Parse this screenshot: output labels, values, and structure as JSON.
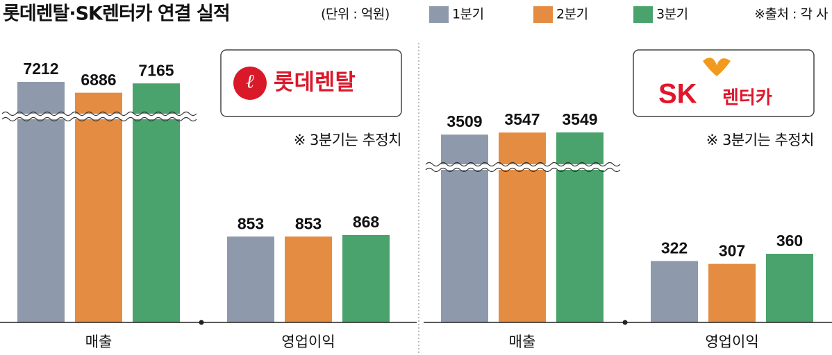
{
  "header": {
    "title": "롯데렌탈·SK렌터카 연결 실적",
    "unit": "(단위 : 억원)",
    "source": "※출처 : 각 사"
  },
  "chart_data": [
    {
      "type": "bar",
      "logo_text": "롯데렌탈",
      "note": "※ 3분기는 추정치",
      "axis_break": true,
      "categories": [
        "매출",
        "영업이익"
      ],
      "series": [
        {
          "name": "1분기",
          "color": "#8e9aab",
          "values": [
            7212,
            853
          ]
        },
        {
          "name": "2분기",
          "color": "#e58c43",
          "values": [
            6886,
            853
          ]
        },
        {
          "name": "3분기",
          "color": "#4aa36c",
          "values": [
            7165,
            868
          ]
        }
      ]
    },
    {
      "type": "bar",
      "logo_text": [
        "SK",
        "렌터카"
      ],
      "note": "※ 3분기는 추정치",
      "axis_break": true,
      "categories": [
        "매출",
        "영업이익"
      ],
      "series": [
        {
          "color": "#8e9aab",
          "values": [
            3509,
            322
          ]
        },
        {
          "color": "#e58c43",
          "values": [
            3547,
            307
          ]
        },
        {
          "color": "#4aa36c",
          "values": [
            3549,
            360
          ]
        }
      ]
    }
  ]
}
